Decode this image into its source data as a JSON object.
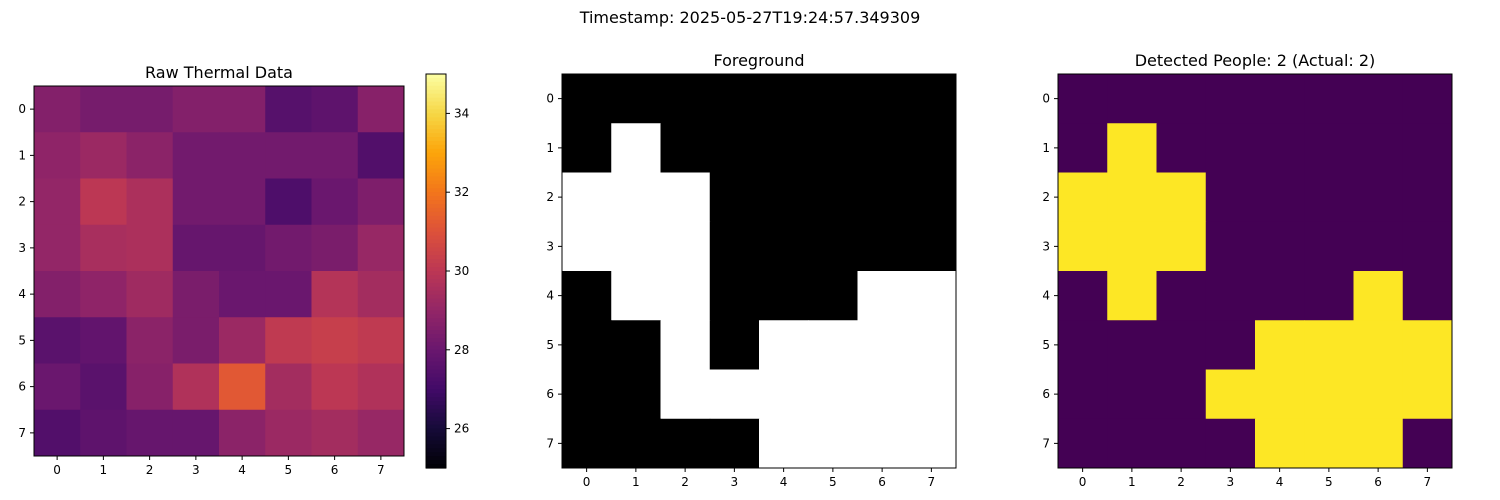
{
  "figure": {
    "suptitle": "Timestamp: 2025-05-27T19:24:57.349309"
  },
  "chart_data": [
    {
      "type": "heatmap",
      "title": "Raw Thermal Data",
      "colormap": "inferno",
      "x_ticks": [
        "0",
        "1",
        "2",
        "3",
        "4",
        "5",
        "6",
        "7"
      ],
      "y_ticks": [
        "0",
        "1",
        "2",
        "3",
        "4",
        "5",
        "6",
        "7"
      ],
      "values": [
        [
          28.6,
          28.3,
          28.3,
          28.6,
          28.6,
          27.5,
          27.7,
          28.7
        ],
        [
          28.9,
          29.2,
          28.8,
          28.2,
          28.2,
          28.2,
          28.2,
          27.4
        ],
        [
          29.0,
          30.0,
          29.6,
          28.2,
          28.2,
          27.3,
          28.0,
          28.5
        ],
        [
          29.0,
          29.5,
          29.6,
          27.9,
          27.9,
          28.2,
          28.4,
          29.1
        ],
        [
          28.6,
          28.9,
          29.3,
          28.4,
          28.0,
          28.0,
          29.8,
          29.4
        ],
        [
          27.6,
          27.8,
          28.8,
          28.4,
          29.2,
          30.1,
          30.3,
          30.1
        ],
        [
          28.0,
          27.6,
          28.7,
          29.7,
          31.2,
          29.4,
          30.0,
          29.7
        ],
        [
          27.4,
          27.7,
          27.9,
          27.9,
          28.8,
          29.2,
          29.4,
          29.1
        ]
      ],
      "colorbar": {
        "vmin": 25,
        "vmax": 35,
        "ticks": [
          "26",
          "28",
          "30",
          "32",
          "34"
        ]
      }
    },
    {
      "type": "heatmap",
      "title": "Foreground",
      "colormap": "gray",
      "x_ticks": [
        "0",
        "1",
        "2",
        "3",
        "4",
        "5",
        "6",
        "7"
      ],
      "y_ticks": [
        "0",
        "1",
        "2",
        "3",
        "4",
        "5",
        "6",
        "7"
      ],
      "values": [
        [
          0,
          0,
          0,
          0,
          0,
          0,
          0,
          0
        ],
        [
          0,
          1,
          0,
          0,
          0,
          0,
          0,
          0
        ],
        [
          1,
          1,
          1,
          0,
          0,
          0,
          0,
          0
        ],
        [
          1,
          1,
          1,
          0,
          0,
          0,
          0,
          0
        ],
        [
          0,
          1,
          1,
          0,
          0,
          0,
          1,
          1
        ],
        [
          0,
          0,
          1,
          0,
          1,
          1,
          1,
          1
        ],
        [
          0,
          0,
          1,
          1,
          1,
          1,
          1,
          1
        ],
        [
          0,
          0,
          0,
          0,
          1,
          1,
          1,
          1
        ]
      ],
      "colors": {
        "off": "#000000",
        "on": "#ffffff"
      }
    },
    {
      "type": "heatmap",
      "title": "Detected People: 2 (Actual: 2)",
      "colormap": "viridis",
      "x_ticks": [
        "0",
        "1",
        "2",
        "3",
        "4",
        "5",
        "6",
        "7"
      ],
      "y_ticks": [
        "0",
        "1",
        "2",
        "3",
        "4",
        "5",
        "6",
        "7"
      ],
      "values": [
        [
          0,
          0,
          0,
          0,
          0,
          0,
          0,
          0
        ],
        [
          0,
          1,
          0,
          0,
          0,
          0,
          0,
          0
        ],
        [
          1,
          1,
          1,
          0,
          0,
          0,
          0,
          0
        ],
        [
          1,
          1,
          1,
          0,
          0,
          0,
          0,
          0
        ],
        [
          0,
          1,
          0,
          0,
          0,
          0,
          1,
          0
        ],
        [
          0,
          0,
          0,
          0,
          1,
          1,
          1,
          1
        ],
        [
          0,
          0,
          0,
          1,
          1,
          1,
          1,
          1
        ],
        [
          0,
          0,
          0,
          0,
          1,
          1,
          1,
          0
        ]
      ],
      "colors": {
        "off": "#440154",
        "on": "#fde725"
      }
    }
  ]
}
